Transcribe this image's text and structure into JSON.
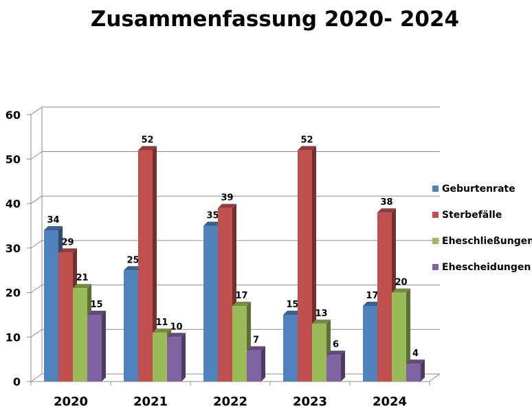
{
  "chart_data": {
    "type": "bar",
    "title": "Zusammenfassung 2020- 2024",
    "xlabel": "",
    "ylabel": "",
    "ylim": [
      0,
      60
    ],
    "yticks": [
      "0",
      "10",
      "20",
      "30",
      "40",
      "50",
      "60"
    ],
    "grid": true,
    "legend_position": "right",
    "categories": [
      "2020",
      "2021",
      "2022",
      "2023",
      "2024"
    ],
    "series": [
      {
        "name": "Geburtenrate",
        "color": "#4F81BD",
        "values": [
          34,
          25,
          35,
          15,
          17
        ]
      },
      {
        "name": "Sterbefälle",
        "color": "#C0504D",
        "values": [
          29,
          52,
          39,
          52,
          38
        ]
      },
      {
        "name": "Eheschließungen",
        "color": "#9BBB59",
        "values": [
          21,
          11,
          17,
          13,
          20
        ]
      },
      {
        "name": "Ehescheidungen",
        "color": "#8064A2",
        "values": [
          15,
          10,
          7,
          6,
          4
        ]
      }
    ]
  }
}
